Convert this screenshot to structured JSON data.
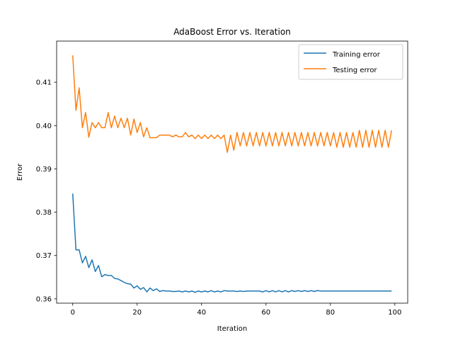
{
  "chart_data": {
    "type": "line",
    "title": "AdaBoost Error vs. Iteration",
    "xlabel": "Iteration",
    "ylabel": "Error",
    "xlim": [
      -5,
      104
    ],
    "ylim": [
      0.359,
      0.4195
    ],
    "xticks": [
      0,
      20,
      40,
      60,
      80,
      100
    ],
    "yticks": [
      0.36,
      0.37,
      0.38,
      0.39,
      0.4,
      0.41
    ],
    "ytick_labels": [
      "0.36",
      "0.37",
      "0.38",
      "0.39",
      "0.40",
      "0.41"
    ],
    "grid": false,
    "legend_position": "top-right",
    "series": [
      {
        "name": "Training error",
        "color": "#1f77b4",
        "values": [
          0.3843,
          0.3713,
          0.3713,
          0.3683,
          0.3698,
          0.3672,
          0.369,
          0.3663,
          0.3677,
          0.3651,
          0.3656,
          0.3654,
          0.3654,
          0.3647,
          0.3646,
          0.3642,
          0.3638,
          0.3635,
          0.3634,
          0.3625,
          0.363,
          0.3622,
          0.3626,
          0.3616,
          0.3625,
          0.3619,
          0.3623,
          0.3617,
          0.3619,
          0.3618,
          0.3618,
          0.3617,
          0.3617,
          0.3618,
          0.3616,
          0.3618,
          0.3616,
          0.3618,
          0.3615,
          0.3618,
          0.3616,
          0.3618,
          0.3616,
          0.3619,
          0.3616,
          0.3618,
          0.3616,
          0.3619,
          0.3618,
          0.3618,
          0.3618,
          0.3617,
          0.3618,
          0.3617,
          0.3618,
          0.3618,
          0.3618,
          0.3618,
          0.3618,
          0.3616,
          0.3619,
          0.3616,
          0.3619,
          0.3616,
          0.3619,
          0.3616,
          0.3619,
          0.3616,
          0.3619,
          0.3617,
          0.3619,
          0.3617,
          0.3619,
          0.3617,
          0.3619,
          0.3617,
          0.3619,
          0.3618,
          0.3618,
          0.3618,
          0.3618,
          0.3618,
          0.3618,
          0.3618,
          0.3618,
          0.3618,
          0.3618,
          0.3618,
          0.3618,
          0.3618,
          0.3618,
          0.3618,
          0.3618,
          0.3618,
          0.3618,
          0.3618,
          0.3618,
          0.3618,
          0.3618,
          0.3618
        ]
      },
      {
        "name": "Testing error",
        "color": "#ff7f0e",
        "values": [
          0.4162,
          0.4035,
          0.4087,
          0.3995,
          0.403,
          0.3973,
          0.4007,
          0.3995,
          0.4007,
          0.3995,
          0.3995,
          0.403,
          0.3995,
          0.4022,
          0.3995,
          0.4017,
          0.3995,
          0.4017,
          0.3978,
          0.4015,
          0.3984,
          0.4007,
          0.3974,
          0.3995,
          0.3972,
          0.3972,
          0.3972,
          0.3978,
          0.3978,
          0.3978,
          0.3978,
          0.3974,
          0.3978,
          0.3974,
          0.3974,
          0.3984,
          0.3974,
          0.3978,
          0.397,
          0.3978,
          0.397,
          0.3978,
          0.397,
          0.3978,
          0.397,
          0.3978,
          0.397,
          0.3978,
          0.3938,
          0.3978,
          0.3943,
          0.3984,
          0.3953,
          0.3984,
          0.3953,
          0.3984,
          0.3953,
          0.3984,
          0.3953,
          0.3984,
          0.3953,
          0.3984,
          0.3953,
          0.3984,
          0.3953,
          0.3984,
          0.3953,
          0.3984,
          0.3953,
          0.3984,
          0.3953,
          0.3984,
          0.3953,
          0.3984,
          0.3953,
          0.3984,
          0.3953,
          0.3984,
          0.3953,
          0.3984,
          0.3953,
          0.3984,
          0.395,
          0.3984,
          0.395,
          0.3984,
          0.395,
          0.3984,
          0.395,
          0.3989,
          0.395,
          0.3989,
          0.395,
          0.3989,
          0.395,
          0.3989,
          0.395,
          0.3989,
          0.395,
          0.3989
        ]
      }
    ]
  }
}
